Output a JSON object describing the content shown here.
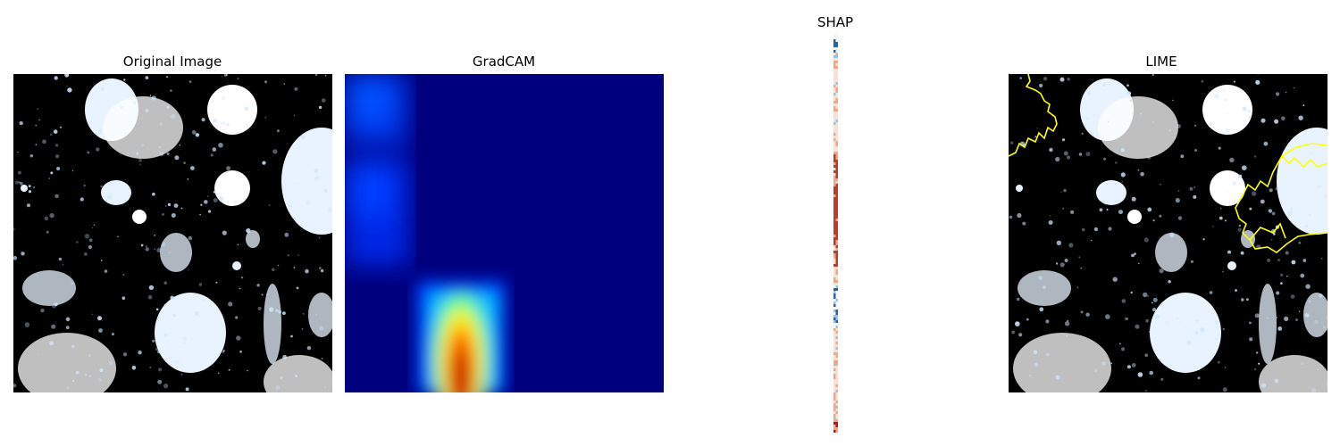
{
  "panels": {
    "original": {
      "title": "Original Image"
    },
    "gradcam": {
      "title": "GradCAM"
    },
    "shap": {
      "title": "SHAP"
    },
    "lime": {
      "title": "LIME"
    }
  },
  "colors": {
    "ct_background": "#000000",
    "ct_tissue": "#ffffff",
    "ct_tissue_tint": "#cfe6ff",
    "gradcam_base": "#00007f",
    "gradcam_hot": "#8b0000",
    "lime_boundary": "#ffff00",
    "shap_positive": "#b2182b",
    "shap_negative": "#2166ac"
  }
}
